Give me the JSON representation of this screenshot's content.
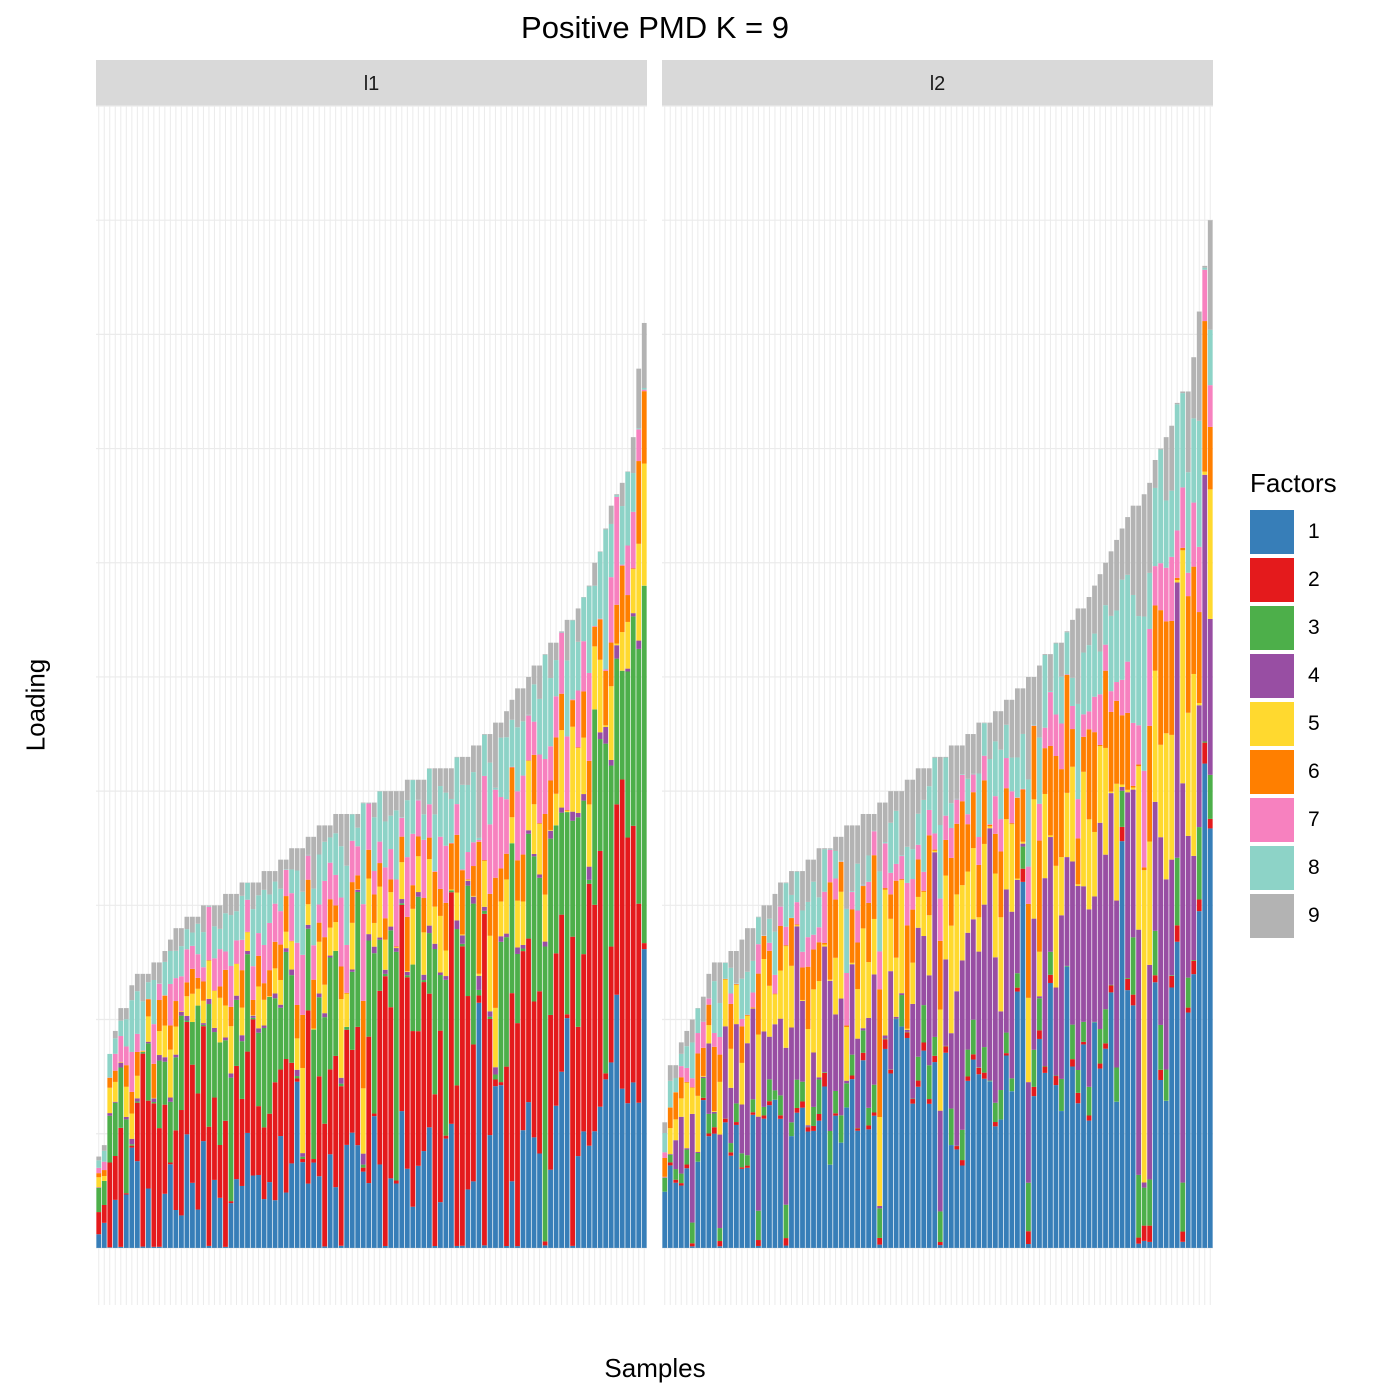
{
  "title": "Positive PMD K = 9",
  "chart_data": {
    "type": "bar",
    "stacked": true,
    "title": "Positive PMD K = 9",
    "xlabel": "Samples",
    "ylabel": "Loading",
    "legend_title": "Factors",
    "legend_position": "right",
    "grid": true,
    "axis_ticks_visible": false,
    "ylim": [
      -0.05,
      1.0
    ],
    "facets": [
      "l1",
      "l2"
    ],
    "factor_labels": [
      "1",
      "2",
      "3",
      "4",
      "5",
      "6",
      "7",
      "8",
      "9"
    ],
    "factor_colors": [
      "#377EB8",
      "#E41A1C",
      "#4DAF4A",
      "#984EA3",
      "#FFD92F",
      "#FF7F00",
      "#F781BF",
      "#8DD3C7",
      "#B3B3B3"
    ],
    "samples_per_facet": 100,
    "bar_totals": {
      "l1": [
        0.08,
        0.09,
        0.17,
        0.19,
        0.21,
        0.21,
        0.23,
        0.24,
        0.24,
        0.24,
        0.25,
        0.25,
        0.26,
        0.27,
        0.28,
        0.28,
        0.29,
        0.29,
        0.29,
        0.3,
        0.3,
        0.3,
        0.3,
        0.31,
        0.31,
        0.31,
        0.32,
        0.32,
        0.32,
        0.32,
        0.33,
        0.33,
        0.33,
        0.34,
        0.34,
        0.35,
        0.35,
        0.35,
        0.36,
        0.36,
        0.37,
        0.37,
        0.37,
        0.38,
        0.38,
        0.38,
        0.38,
        0.38,
        0.39,
        0.39,
        0.39,
        0.4,
        0.4,
        0.4,
        0.4,
        0.4,
        0.41,
        0.41,
        0.41,
        0.41,
        0.42,
        0.42,
        0.42,
        0.42,
        0.42,
        0.43,
        0.43,
        0.43,
        0.44,
        0.44,
        0.45,
        0.45,
        0.46,
        0.46,
        0.47,
        0.48,
        0.49,
        0.49,
        0.5,
        0.51,
        0.51,
        0.52,
        0.53,
        0.53,
        0.54,
        0.55,
        0.55,
        0.56,
        0.57,
        0.58,
        0.6,
        0.61,
        0.63,
        0.65,
        0.66,
        0.67,
        0.68,
        0.71,
        0.77,
        0.81
      ],
      "l2": [
        0.11,
        0.16,
        0.16,
        0.18,
        0.19,
        0.2,
        0.21,
        0.22,
        0.24,
        0.25,
        0.25,
        0.25,
        0.26,
        0.26,
        0.27,
        0.28,
        0.28,
        0.29,
        0.3,
        0.3,
        0.31,
        0.32,
        0.32,
        0.33,
        0.33,
        0.33,
        0.34,
        0.34,
        0.35,
        0.35,
        0.35,
        0.36,
        0.36,
        0.37,
        0.37,
        0.37,
        0.38,
        0.38,
        0.38,
        0.39,
        0.39,
        0.4,
        0.4,
        0.4,
        0.41,
        0.41,
        0.42,
        0.42,
        0.42,
        0.43,
        0.43,
        0.43,
        0.44,
        0.44,
        0.44,
        0.45,
        0.45,
        0.46,
        0.46,
        0.46,
        0.47,
        0.47,
        0.48,
        0.48,
        0.49,
        0.49,
        0.5,
        0.5,
        0.51,
        0.52,
        0.52,
        0.53,
        0.53,
        0.54,
        0.55,
        0.56,
        0.56,
        0.57,
        0.58,
        0.59,
        0.6,
        0.61,
        0.62,
        0.63,
        0.64,
        0.65,
        0.65,
        0.66,
        0.67,
        0.69,
        0.7,
        0.71,
        0.72,
        0.74,
        0.75,
        0.75,
        0.78,
        0.82,
        0.86,
        0.9
      ]
    }
  }
}
